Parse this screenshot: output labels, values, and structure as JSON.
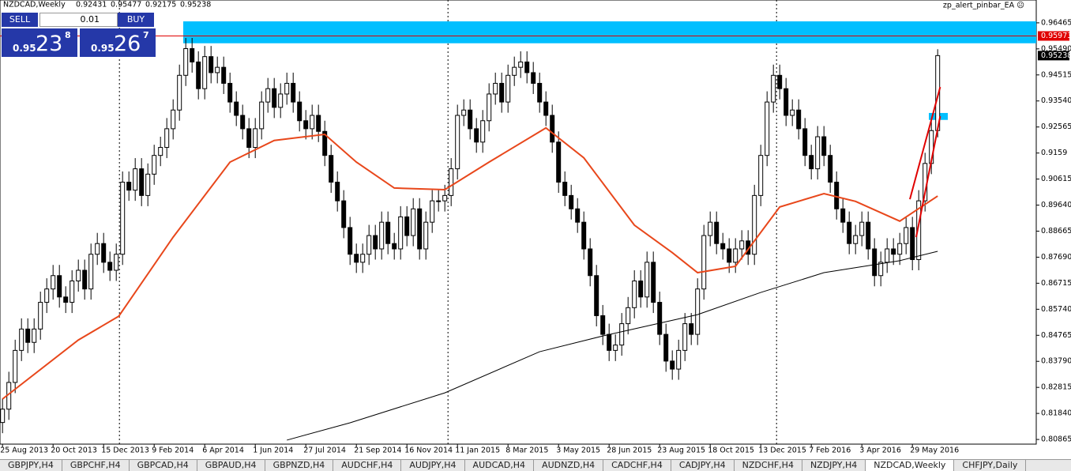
{
  "chart_data": {
    "type": "candlestick",
    "title": "NZDCAD,Weekly",
    "ea_label": "zp_alert_pinbar_EA ☹",
    "xlim": [
      -0.4,
      163.6
    ],
    "ylim": [
      0.8069,
      0.9732
    ],
    "yticks": [
      0.96465,
      {
        "value": 0.9549,
        "label": "0.95490"
      },
      0.94515,
      {
        "value": 0.9354,
        "label": "0.93540"
      },
      0.92565,
      0.9159,
      0.90615,
      {
        "value": 0.8964,
        "label": "0.89640"
      },
      0.88665,
      {
        "value": 0.8769,
        "label": "0.87690"
      },
      0.86715,
      {
        "value": 0.8574,
        "label": "0.85740"
      },
      0.84765,
      {
        "value": 0.8379,
        "label": "0.83790"
      },
      0.82815,
      {
        "value": 0.8184,
        "label": "0.81840"
      },
      0.80865
    ],
    "xticks": [
      {
        "value": 0,
        "label": "25 Aug 2013"
      },
      {
        "value": 8,
        "label": "20 Oct 2013"
      },
      {
        "value": 16,
        "label": "15 Dec 2013"
      },
      {
        "value": 24,
        "label": "9 Feb 2014"
      },
      {
        "value": 32,
        "label": "6 Apr 2014"
      },
      {
        "value": 40,
        "label": "1 Jun 2014"
      },
      {
        "value": 48,
        "label": "27 Jul 2014"
      },
      {
        "value": 56,
        "label": "21 Sep 2014"
      },
      {
        "value": 64,
        "label": "16 Nov 2014"
      },
      {
        "value": 72,
        "label": "11 Jan 2015"
      },
      {
        "value": 80,
        "label": "8 Mar 2015"
      },
      {
        "value": 88,
        "label": "3 May 2015"
      },
      {
        "value": 96,
        "label": "28 Jun 2015"
      },
      {
        "value": 104,
        "label": "23 Aug 2015"
      },
      {
        "value": 112,
        "label": "18 Oct 2015"
      },
      {
        "value": 120,
        "label": "13 Dec 2015"
      },
      {
        "value": 128,
        "label": "7 Feb 2016"
      },
      {
        "value": 136,
        "label": "3 Apr 2016"
      },
      {
        "value": 144,
        "label": "29 May 2016"
      }
    ],
    "separators": [
      18.5,
      70.5,
      122.5
    ],
    "open": [
      0.815,
      0.82,
      0.83,
      0.842,
      0.85,
      0.845,
      0.85,
      0.86,
      0.865,
      0.87,
      0.862,
      0.86,
      0.868,
      0.872,
      0.865,
      0.878,
      0.882,
      0.875,
      0.872,
      0.878,
      0.905,
      0.902,
      0.91,
      0.9,
      0.908,
      0.915,
      0.918,
      0.925,
      0.932,
      0.945,
      0.955,
      0.95,
      0.94,
      0.952,
      0.946,
      0.948,
      0.942,
      0.935,
      0.93,
      0.925,
      0.918,
      0.925,
      0.935,
      0.94,
      0.933,
      0.938,
      0.942,
      0.935,
      0.928,
      0.925,
      0.93,
      0.924,
      0.915,
      0.905,
      0.898,
      0.888,
      0.878,
      0.875,
      0.878,
      0.885,
      0.88,
      0.89,
      0.882,
      0.88,
      0.892,
      0.885,
      0.895,
      0.88,
      0.89,
      0.898,
      0.898,
      0.9,
      0.91,
      0.93,
      0.932,
      0.925,
      0.92,
      0.928,
      0.938,
      0.942,
      0.935,
      0.945,
      0.948,
      0.95,
      0.946,
      0.942,
      0.935,
      0.93,
      0.92,
      0.905,
      0.9,
      0.895,
      0.89,
      0.88,
      0.87,
      0.855,
      0.848,
      0.842,
      0.844,
      0.852,
      0.858,
      0.868,
      0.862,
      0.875,
      0.86,
      0.848,
      0.838,
      0.835,
      0.842,
      0.852,
      0.848,
      0.865,
      0.885,
      0.89,
      0.882,
      0.88,
      0.875,
      0.88,
      0.883,
      0.878,
      0.9,
      0.915,
      0.935,
      0.945,
      0.94,
      0.93,
      0.932,
      0.925,
      0.915,
      0.91,
      0.922,
      0.915,
      0.905,
      0.895,
      0.89,
      0.882,
      0.885,
      0.89,
      0.88,
      0.87,
      0.875,
      0.88,
      0.878,
      0.882,
      0.888,
      0.876,
      0.898,
      0.912,
      0.92431
    ],
    "high": [
      0.824,
      0.834,
      0.846,
      0.854,
      0.854,
      0.854,
      0.864,
      0.869,
      0.874,
      0.874,
      0.866,
      0.872,
      0.876,
      0.876,
      0.882,
      0.886,
      0.886,
      0.879,
      0.882,
      0.909,
      0.909,
      0.914,
      0.914,
      0.912,
      0.919,
      0.922,
      0.929,
      0.936,
      0.949,
      0.959,
      0.959,
      0.954,
      0.956,
      0.956,
      0.952,
      0.952,
      0.946,
      0.939,
      0.934,
      0.929,
      0.929,
      0.939,
      0.944,
      0.944,
      0.942,
      0.946,
      0.946,
      0.939,
      0.932,
      0.934,
      0.934,
      0.928,
      0.919,
      0.909,
      0.902,
      0.892,
      0.882,
      0.882,
      0.889,
      0.889,
      0.894,
      0.894,
      0.886,
      0.896,
      0.896,
      0.899,
      0.899,
      0.894,
      0.902,
      0.902,
      0.904,
      0.914,
      0.934,
      0.936,
      0.936,
      0.929,
      0.932,
      0.942,
      0.946,
      0.946,
      0.949,
      0.952,
      0.954,
      0.954,
      0.95,
      0.946,
      0.939,
      0.934,
      0.924,
      0.909,
      0.904,
      0.899,
      0.894,
      0.884,
      0.874,
      0.859,
      0.852,
      0.848,
      0.856,
      0.862,
      0.872,
      0.872,
      0.879,
      0.879,
      0.864,
      0.852,
      0.842,
      0.846,
      0.856,
      0.856,
      0.869,
      0.889,
      0.894,
      0.894,
      0.886,
      0.884,
      0.884,
      0.887,
      0.887,
      0.904,
      0.919,
      0.939,
      0.949,
      0.949,
      0.944,
      0.936,
      0.936,
      0.929,
      0.919,
      0.926,
      0.926,
      0.919,
      0.909,
      0.899,
      0.894,
      0.889,
      0.894,
      0.894,
      0.884,
      0.879,
      0.884,
      0.884,
      0.886,
      0.892,
      0.892,
      0.902,
      0.916,
      0.9283,
      0.95477
    ],
    "low": [
      0.811,
      0.816,
      0.826,
      0.838,
      0.841,
      0.841,
      0.846,
      0.856,
      0.861,
      0.858,
      0.856,
      0.856,
      0.864,
      0.861,
      0.861,
      0.874,
      0.871,
      0.868,
      0.868,
      0.874,
      0.898,
      0.898,
      0.896,
      0.896,
      0.904,
      0.911,
      0.914,
      0.921,
      0.928,
      0.941,
      0.946,
      0.936,
      0.936,
      0.942,
      0.942,
      0.938,
      0.931,
      0.926,
      0.921,
      0.914,
      0.914,
      0.921,
      0.931,
      0.929,
      0.929,
      0.934,
      0.931,
      0.924,
      0.921,
      0.921,
      0.92,
      0.911,
      0.901,
      0.894,
      0.884,
      0.874,
      0.871,
      0.871,
      0.874,
      0.876,
      0.876,
      0.878,
      0.876,
      0.876,
      0.881,
      0.881,
      0.876,
      0.876,
      0.886,
      0.894,
      0.894,
      0.896,
      0.906,
      0.926,
      0.921,
      0.916,
      0.916,
      0.924,
      0.934,
      0.931,
      0.931,
      0.941,
      0.944,
      0.942,
      0.938,
      0.931,
      0.926,
      0.916,
      0.901,
      0.896,
      0.891,
      0.886,
      0.876,
      0.866,
      0.851,
      0.844,
      0.838,
      0.838,
      0.84,
      0.848,
      0.854,
      0.858,
      0.858,
      0.856,
      0.844,
      0.834,
      0.831,
      0.831,
      0.838,
      0.844,
      0.844,
      0.861,
      0.881,
      0.878,
      0.876,
      0.871,
      0.871,
      0.876,
      0.874,
      0.874,
      0.896,
      0.911,
      0.931,
      0.936,
      0.926,
      0.926,
      0.921,
      0.911,
      0.906,
      0.906,
      0.911,
      0.901,
      0.891,
      0.886,
      0.878,
      0.878,
      0.881,
      0.876,
      0.866,
      0.866,
      0.871,
      0.874,
      0.874,
      0.878,
      0.872,
      0.872,
      0.894,
      0.908,
      0.92175
    ],
    "close": [
      0.82,
      0.83,
      0.842,
      0.85,
      0.845,
      0.85,
      0.86,
      0.865,
      0.87,
      0.862,
      0.86,
      0.868,
      0.872,
      0.865,
      0.878,
      0.882,
      0.875,
      0.872,
      0.878,
      0.905,
      0.902,
      0.91,
      0.9,
      0.908,
      0.915,
      0.918,
      0.925,
      0.932,
      0.945,
      0.955,
      0.95,
      0.94,
      0.952,
      0.946,
      0.948,
      0.942,
      0.935,
      0.93,
      0.925,
      0.918,
      0.925,
      0.935,
      0.94,
      0.933,
      0.938,
      0.942,
      0.935,
      0.928,
      0.925,
      0.93,
      0.924,
      0.915,
      0.905,
      0.898,
      0.888,
      0.878,
      0.875,
      0.878,
      0.885,
      0.88,
      0.89,
      0.882,
      0.88,
      0.892,
      0.885,
      0.895,
      0.88,
      0.89,
      0.898,
      0.898,
      0.9,
      0.91,
      0.93,
      0.932,
      0.925,
      0.92,
      0.928,
      0.938,
      0.942,
      0.935,
      0.945,
      0.948,
      0.95,
      0.946,
      0.942,
      0.935,
      0.93,
      0.92,
      0.905,
      0.9,
      0.895,
      0.89,
      0.88,
      0.87,
      0.855,
      0.848,
      0.842,
      0.844,
      0.852,
      0.858,
      0.868,
      0.862,
      0.875,
      0.86,
      0.848,
      0.838,
      0.835,
      0.842,
      0.852,
      0.848,
      0.865,
      0.885,
      0.89,
      0.882,
      0.88,
      0.875,
      0.88,
      0.883,
      0.878,
      0.9,
      0.915,
      0.935,
      0.945,
      0.94,
      0.93,
      0.932,
      0.925,
      0.915,
      0.91,
      0.922,
      0.915,
      0.905,
      0.895,
      0.89,
      0.882,
      0.885,
      0.89,
      0.88,
      0.87,
      0.875,
      0.88,
      0.878,
      0.882,
      0.888,
      0.876,
      0.898,
      0.912,
      0.9243,
      0.95238
    ],
    "bull_color": "#ffffff",
    "bear_color": "#000000",
    "series": [
      {
        "color": "#e8471b",
        "x": [
          0,
          12,
          18.4,
          27,
          36,
          43,
          51,
          56,
          62,
          70,
          77,
          86,
          92,
          100,
          106,
          110,
          116,
          123,
          130,
          135,
          142,
          148
        ],
        "values": [
          0.8238,
          0.8459,
          0.8548,
          0.8844,
          0.9125,
          0.9206,
          0.9229,
          0.9125,
          0.9028,
          0.9022,
          0.9125,
          0.9253,
          0.9141,
          0.8889,
          0.8786,
          0.8711,
          0.8735,
          0.8957,
          0.9007,
          0.8978,
          0.8904,
          0.8998
        ]
      },
      {
        "color": "#000000",
        "x": [
          45,
          55,
          70,
          85,
          95,
          110,
          120,
          130,
          142,
          148
        ],
        "values": [
          0.8084,
          0.8149,
          0.8261,
          0.8415,
          0.8474,
          0.8554,
          0.8637,
          0.8711,
          0.8756,
          0.8791
        ]
      }
    ],
    "zones": [
      {
        "x": [
          28.6,
          163.6
        ],
        "y": [
          0.9652,
          0.957
        ],
        "color": "#00bfff"
      },
      {
        "x": [
          146.6,
          149.6
        ],
        "y": [
          0.9309,
          0.9283
        ],
        "color": "#00bfff"
      }
    ],
    "alert_line": 0.95973,
    "alert_color": "#e00000",
    "trendlines": [
      {
        "x": [
          143.6,
          148.4
        ],
        "y": [
          0.8986,
          0.9406
        ],
        "color": "#e00000"
      },
      {
        "x": [
          144.6,
          148.4
        ],
        "y": [
          0.8844,
          0.9297
        ],
        "color": "#e00000"
      }
    ]
  },
  "trade_panel": {
    "sell": "SELL",
    "buy": "BUY",
    "lot": "0.01",
    "sell_price": [
      "0.95",
      "23",
      "8"
    ],
    "buy_price": [
      "0.95",
      "26",
      "7"
    ]
  },
  "tabs": [
    "GBPJPY,H4",
    "GBPCHF,H4",
    "GBPCAD,H4",
    "GBPAUD,H4",
    "GBPNZD,H4",
    "AUDCHF,H4",
    "AUDJPY,H4",
    "AUDCAD,H4",
    "AUDNZD,H4",
    "CADCHF,H4",
    "CADJPY,H4",
    "NZDCHF,H4",
    "NZDJPY,H4",
    "NZDCAD,Weekly",
    "CHFJPY,Daily"
  ],
  "active_tab": 13
}
